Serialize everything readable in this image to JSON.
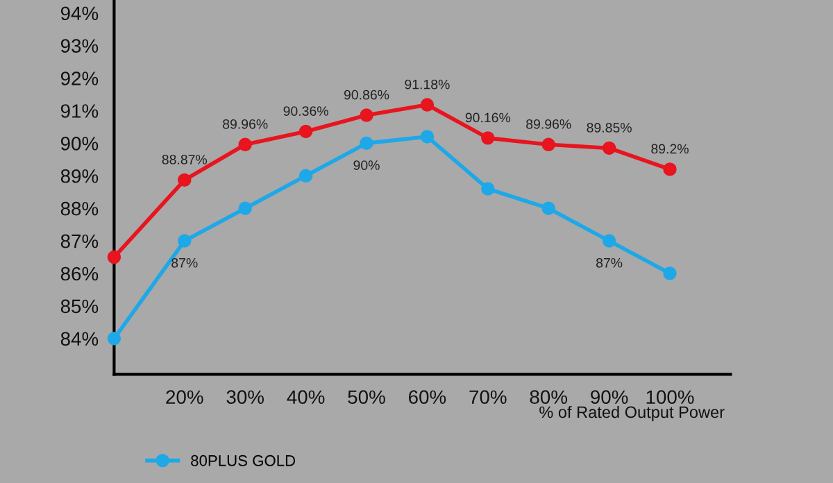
{
  "chart_data": {
    "type": "line",
    "xlabel": "% of Rated Output Power",
    "x": [
      8.4,
      20,
      30,
      40,
      50,
      60,
      70,
      80,
      90,
      100
    ],
    "xlim": [
      8.4,
      110
    ],
    "xticks": [
      {
        "value": 20,
        "label": "20%"
      },
      {
        "value": 30,
        "label": "30%"
      },
      {
        "value": 40,
        "label": "40%"
      },
      {
        "value": 50,
        "label": "50%"
      },
      {
        "value": 60,
        "label": "60%"
      },
      {
        "value": 70,
        "label": "70%"
      },
      {
        "value": 80,
        "label": "80%"
      },
      {
        "value": 90,
        "label": "90%"
      },
      {
        "value": 100,
        "label": "100%"
      }
    ],
    "ylim": [
      82.9,
      94.4
    ],
    "yticks": [
      {
        "value": 84,
        "label": "84%"
      },
      {
        "value": 85,
        "label": "85%"
      },
      {
        "value": 86,
        "label": "86%"
      },
      {
        "value": 87,
        "label": "87%"
      },
      {
        "value": 88,
        "label": "88%"
      },
      {
        "value": 89,
        "label": "89%"
      },
      {
        "value": 90,
        "label": "90%"
      },
      {
        "value": 91,
        "label": "91%"
      },
      {
        "value": 92,
        "label": "92%"
      },
      {
        "value": 93,
        "label": "93%"
      },
      {
        "value": 94,
        "label": "94%"
      }
    ],
    "series": [
      {
        "name": "80PLUS GOLD",
        "color": "#1ea8e8",
        "values": [
          84.0,
          87,
          88.0,
          89.0,
          90,
          90.2,
          88.6,
          88.0,
          87,
          86.0
        ],
        "value_labels": [
          null,
          "87%",
          null,
          null,
          "90%",
          null,
          null,
          null,
          "87%",
          null
        ]
      },
      {
        "color": "#e8141e",
        "values": [
          86.5,
          88.87,
          89.96,
          90.36,
          90.86,
          91.18,
          90.16,
          89.96,
          89.85,
          89.2
        ],
        "value_labels": [
          null,
          "88.87%",
          "89.96%",
          "90.36%",
          "90.86%",
          "91.18%",
          "90.16%",
          "89.96%",
          "89.85%",
          "89.2%"
        ]
      }
    ],
    "marker": "circle",
    "line_style": "solid",
    "grid": false,
    "legend": "bottom left"
  }
}
